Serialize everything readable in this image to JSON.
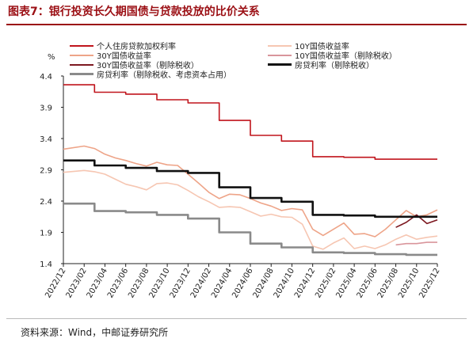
{
  "title": "图表7：银行投资长久期国债与贷款投放的比价关系",
  "source": "资料来源：Wind，中邮证券研究所",
  "chart_data": {
    "type": "line",
    "unit": "%",
    "ylim": [
      1.4,
      4.4
    ],
    "yticks": [
      "4.4",
      "3.9",
      "3.4",
      "2.9",
      "2.4",
      "1.9",
      "1.4"
    ],
    "xticks": [
      "2022/12",
      "2023/02",
      "2023/04",
      "2023/06",
      "2023/08",
      "2023/10",
      "2023/12",
      "2024/02",
      "2024/04",
      "2024/06",
      "2024/08",
      "2024/10",
      "2024/12",
      "2025/02",
      "2025/04",
      "2025/06",
      "2025/08",
      "2025/10",
      "2025/12"
    ],
    "legend_placement": "top",
    "grid": false,
    "series": [
      {
        "name": "个人住房贷款加权利率",
        "color": "#c0141c",
        "width": 1.6,
        "points": [
          [
            "2022/12",
            4.26
          ],
          [
            "2023/03",
            4.14
          ],
          [
            "2023/06",
            4.11
          ],
          [
            "2023/09",
            4.02
          ],
          [
            "2023/12",
            3.97
          ],
          [
            "2024/03",
            3.69
          ],
          [
            "2024/06",
            3.45
          ],
          [
            "2024/09",
            3.36
          ],
          [
            "2024/12",
            3.11
          ],
          [
            "2025/03",
            3.1
          ],
          [
            "2025/06",
            3.07
          ],
          [
            "2025/09",
            3.07
          ],
          [
            "2025/12",
            3.07
          ]
        ]
      },
      {
        "name": "10Y国债收益率",
        "color": "#f6c6b2",
        "width": 1.6,
        "points": [
          [
            "2022/12",
            2.86
          ],
          [
            "2023/02",
            2.89
          ],
          [
            "2023/03",
            2.87
          ],
          [
            "2023/04",
            2.83
          ],
          [
            "2023/05",
            2.75
          ],
          [
            "2023/06",
            2.67
          ],
          [
            "2023/07",
            2.63
          ],
          [
            "2023/08",
            2.58
          ],
          [
            "2023/09",
            2.68
          ],
          [
            "2023/10",
            2.69
          ],
          [
            "2023/11",
            2.66
          ],
          [
            "2023/12",
            2.57
          ],
          [
            "2024/01",
            2.47
          ],
          [
            "2024/02",
            2.39
          ],
          [
            "2024/03",
            2.3
          ],
          [
            "2024/04",
            2.31
          ],
          [
            "2024/05",
            2.3
          ],
          [
            "2024/06",
            2.23
          ],
          [
            "2024/07",
            2.16
          ],
          [
            "2024/08",
            2.19
          ],
          [
            "2024/09",
            2.15
          ],
          [
            "2024/10",
            2.14
          ],
          [
            "2024/11",
            2.03
          ],
          [
            "2024/12",
            1.68
          ],
          [
            "2025/01",
            1.63
          ],
          [
            "2025/02",
            1.73
          ],
          [
            "2025/03",
            1.81
          ],
          [
            "2025/04",
            1.64
          ],
          [
            "2025/05",
            1.68
          ],
          [
            "2025/06",
            1.64
          ],
          [
            "2025/07",
            1.7
          ],
          [
            "2025/08",
            1.79
          ],
          [
            "2025/09",
            1.86
          ],
          [
            "2025/10",
            1.79
          ],
          [
            "2025/11",
            1.82
          ],
          [
            "2025/12",
            1.84
          ]
        ]
      },
      {
        "name": "30Y国债收益率",
        "color": "#eea488",
        "width": 1.6,
        "points": [
          [
            "2022/12",
            3.23
          ],
          [
            "2023/02",
            3.28
          ],
          [
            "2023/03",
            3.24
          ],
          [
            "2023/04",
            3.15
          ],
          [
            "2023/05",
            3.09
          ],
          [
            "2023/06",
            3.05
          ],
          [
            "2023/07",
            3.0
          ],
          [
            "2023/08",
            2.96
          ],
          [
            "2023/09",
            3.02
          ],
          [
            "2023/10",
            2.98
          ],
          [
            "2023/11",
            2.97
          ],
          [
            "2023/12",
            2.83
          ],
          [
            "2024/01",
            2.69
          ],
          [
            "2024/02",
            2.54
          ],
          [
            "2024/03",
            2.44
          ],
          [
            "2024/04",
            2.51
          ],
          [
            "2024/05",
            2.5
          ],
          [
            "2024/06",
            2.44
          ],
          [
            "2024/07",
            2.37
          ],
          [
            "2024/08",
            2.32
          ],
          [
            "2024/09",
            2.25
          ],
          [
            "2024/10",
            2.28
          ],
          [
            "2024/11",
            2.26
          ],
          [
            "2024/12",
            1.95
          ],
          [
            "2025/01",
            1.85
          ],
          [
            "2025/02",
            1.95
          ],
          [
            "2025/03",
            2.05
          ],
          [
            "2025/04",
            1.87
          ],
          [
            "2025/05",
            1.88
          ],
          [
            "2025/06",
            1.83
          ],
          [
            "2025/07",
            1.95
          ],
          [
            "2025/08",
            2.1
          ],
          [
            "2025/09",
            2.25
          ],
          [
            "2025/10",
            2.15
          ],
          [
            "2025/11",
            2.18
          ],
          [
            "2025/12",
            2.26
          ]
        ]
      },
      {
        "name": "10Y国债收益率（剔除税收）",
        "color": "#d9959b",
        "width": 1.6,
        "points": [
          [
            "2025/08",
            1.7
          ],
          [
            "2025/09",
            1.72
          ],
          [
            "2025/10",
            1.72
          ],
          [
            "2025/11",
            1.74
          ],
          [
            "2025/12",
            1.74
          ]
        ]
      },
      {
        "name": "30Y国债收益率（剔除税收）",
        "color": "#7d1820",
        "width": 1.6,
        "points": [
          [
            "2025/08",
            1.98
          ],
          [
            "2025/09",
            2.06
          ],
          [
            "2025/10",
            2.18
          ],
          [
            "2025/11",
            2.04
          ],
          [
            "2025/12",
            2.1
          ]
        ]
      },
      {
        "name": "房贷利率（剔除税收）",
        "color": "#111111",
        "width": 2.6,
        "points": [
          [
            "2022/12",
            3.05
          ],
          [
            "2023/03",
            2.97
          ],
          [
            "2023/06",
            2.93
          ],
          [
            "2023/09",
            2.88
          ],
          [
            "2023/12",
            2.85
          ],
          [
            "2024/03",
            2.62
          ],
          [
            "2024/06",
            2.45
          ],
          [
            "2024/09",
            2.39
          ],
          [
            "2024/12",
            2.18
          ],
          [
            "2025/03",
            2.17
          ],
          [
            "2025/06",
            2.15
          ],
          [
            "2025/09",
            2.15
          ],
          [
            "2025/12",
            2.15
          ]
        ]
      },
      {
        "name": "房贷利率（剔除税收、考虑资本占用）",
        "color": "#8a8a8a",
        "width": 2.6,
        "points": [
          [
            "2022/12",
            2.36
          ],
          [
            "2023/03",
            2.24
          ],
          [
            "2023/06",
            2.22
          ],
          [
            "2023/09",
            2.18
          ],
          [
            "2023/12",
            2.12
          ],
          [
            "2024/03",
            1.9
          ],
          [
            "2024/06",
            1.72
          ],
          [
            "2024/09",
            1.66
          ],
          [
            "2024/12",
            1.58
          ],
          [
            "2025/03",
            1.57
          ],
          [
            "2025/06",
            1.55
          ],
          [
            "2025/09",
            1.54
          ],
          [
            "2025/12",
            1.54
          ]
        ]
      }
    ]
  }
}
